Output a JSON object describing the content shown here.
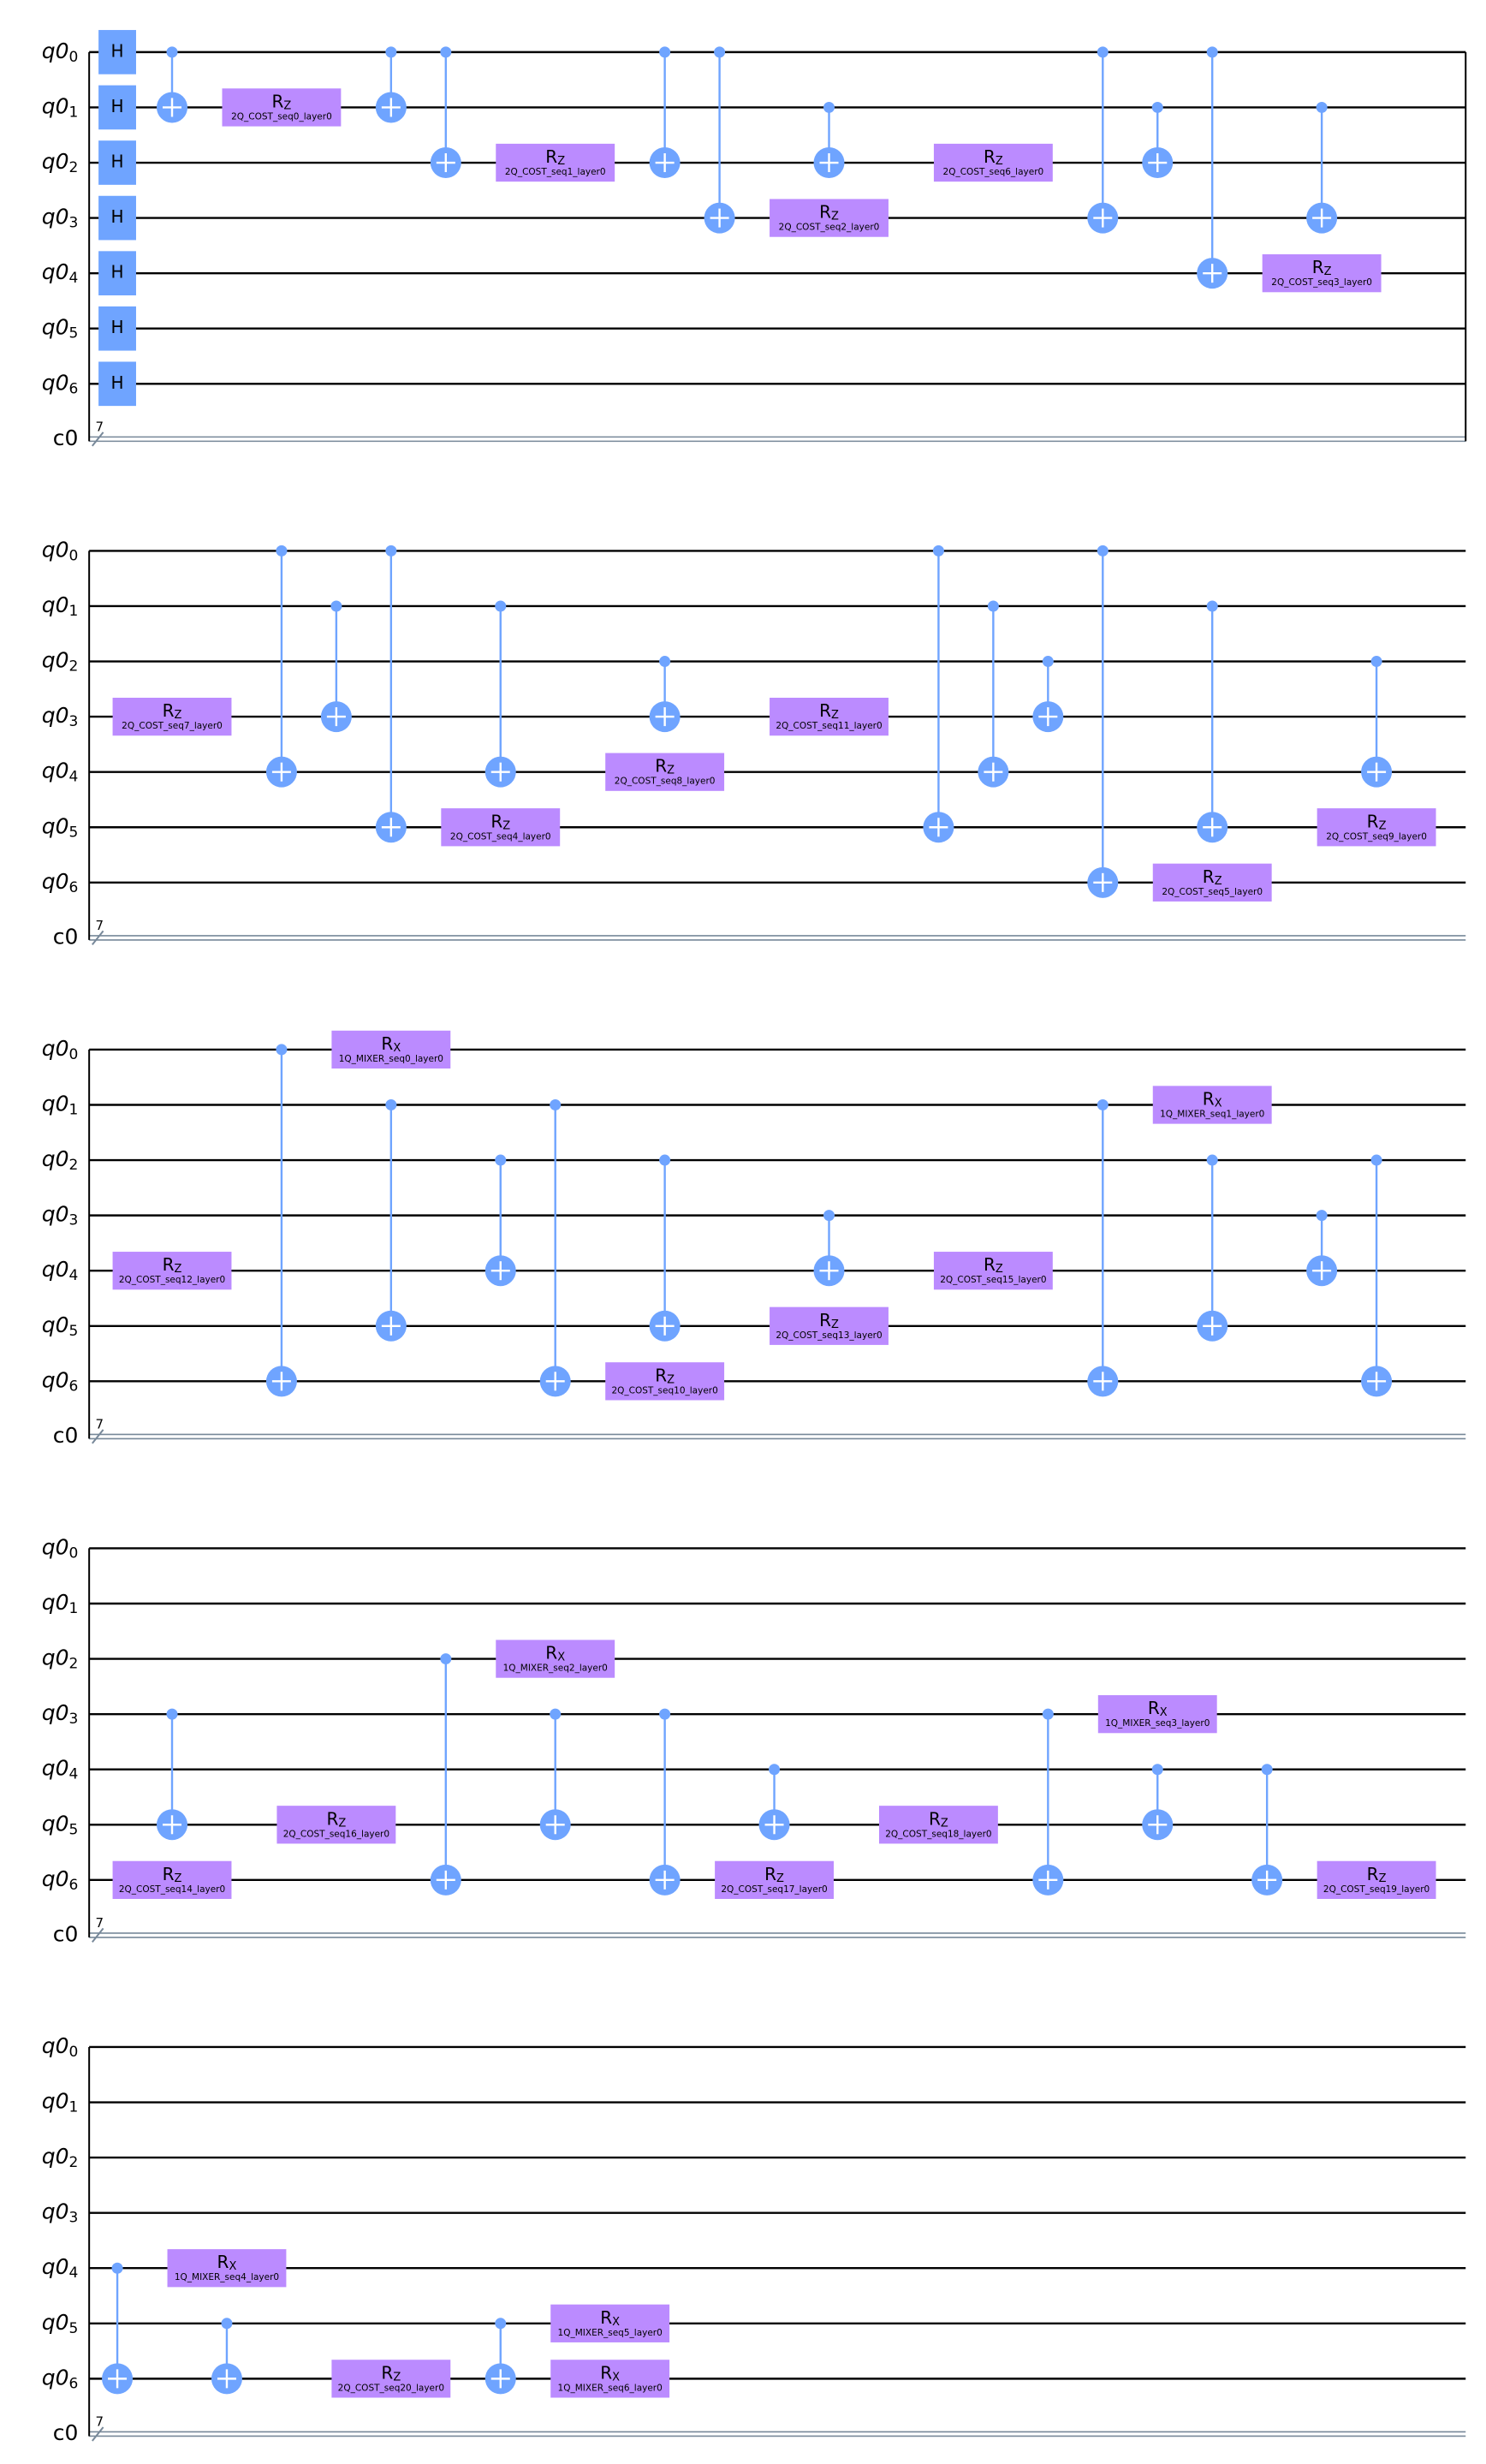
{
  "register": "q0",
  "qubit_indices": [
    "0",
    "1",
    "2",
    "3",
    "4",
    "5",
    "6"
  ],
  "classical": {
    "name": "c0",
    "size": "7"
  },
  "sections": [
    {
      "columns": [
        [
          {
            "gate": "h",
            "qubit": 0,
            "label": "H"
          },
          {
            "gate": "h",
            "qubit": 1,
            "label": "H"
          },
          {
            "gate": "h",
            "qubit": 2,
            "label": "H"
          },
          {
            "gate": "h",
            "qubit": 3,
            "label": "H"
          },
          {
            "gate": "h",
            "qubit": 4,
            "label": "H"
          },
          {
            "gate": "h",
            "qubit": 5,
            "label": "H"
          },
          {
            "gate": "h",
            "qubit": 6,
            "label": "H"
          }
        ],
        [
          {
            "gate": "cx",
            "control": 0,
            "target": 1
          }
        ],
        [
          {
            "gate": "rz",
            "qubit": 1,
            "label": "R",
            "sub": "Z",
            "param": "2Q_COST_seq0_layer0"
          }
        ],
        [
          {
            "gate": "cx",
            "control": 0,
            "target": 1
          }
        ],
        [
          {
            "gate": "cx",
            "control": 0,
            "target": 2
          }
        ],
        [
          {
            "gate": "rz",
            "qubit": 2,
            "label": "R",
            "sub": "Z",
            "param": "2Q_COST_seq1_layer0"
          }
        ],
        [
          {
            "gate": "cx",
            "control": 0,
            "target": 2
          }
        ],
        [
          {
            "gate": "cx",
            "control": 0,
            "target": 3
          }
        ],
        [
          {
            "gate": "rz",
            "qubit": 3,
            "label": "R",
            "sub": "Z",
            "param": "2Q_COST_seq2_layer0"
          },
          {
            "gate": "cx",
            "control": 1,
            "target": 2
          }
        ],
        [
          {
            "gate": "rz",
            "qubit": 2,
            "label": "R",
            "sub": "Z",
            "param": "2Q_COST_seq6_layer0"
          }
        ],
        [
          {
            "gate": "cx",
            "control": 0,
            "target": 3
          }
        ],
        [
          {
            "gate": "cx",
            "control": 1,
            "target": 2
          }
        ],
        [
          {
            "gate": "cx",
            "control": 0,
            "target": 4
          }
        ],
        [
          {
            "gate": "cx",
            "control": 1,
            "target": 3
          },
          {
            "gate": "rz",
            "qubit": 4,
            "label": "R",
            "sub": "Z",
            "param": "2Q_COST_seq3_layer0"
          }
        ]
      ]
    },
    {
      "columns": [
        [
          {
            "gate": "rz",
            "qubit": 3,
            "label": "R",
            "sub": "Z",
            "param": "2Q_COST_seq7_layer0"
          }
        ],
        [
          {
            "gate": "cx",
            "control": 0,
            "target": 4
          }
        ],
        [
          {
            "gate": "cx",
            "control": 1,
            "target": 3
          }
        ],
        [
          {
            "gate": "cx",
            "control": 0,
            "target": 5
          }
        ],
        [
          {
            "gate": "cx",
            "control": 1,
            "target": 4
          },
          {
            "gate": "rz",
            "qubit": 5,
            "label": "R",
            "sub": "Z",
            "param": "2Q_COST_seq4_layer0"
          }
        ],
        [
          {
            "gate": "cx",
            "control": 2,
            "target": 3
          },
          {
            "gate": "rz",
            "qubit": 4,
            "label": "R",
            "sub": "Z",
            "param": "2Q_COST_seq8_layer0"
          }
        ],
        [
          {
            "gate": "rz",
            "qubit": 3,
            "label": "R",
            "sub": "Z",
            "param": "2Q_COST_seq11_layer0"
          }
        ],
        [
          {
            "gate": "cx",
            "control": 0,
            "target": 5
          }
        ],
        [
          {
            "gate": "cx",
            "control": 1,
            "target": 4
          }
        ],
        [
          {
            "gate": "cx",
            "control": 2,
            "target": 3
          }
        ],
        [
          {
            "gate": "cx",
            "control": 0,
            "target": 6
          }
        ],
        [
          {
            "gate": "cx",
            "control": 1,
            "target": 5
          },
          {
            "gate": "rz",
            "qubit": 6,
            "label": "R",
            "sub": "Z",
            "param": "2Q_COST_seq5_layer0"
          }
        ],
        [
          {
            "gate": "cx",
            "control": 2,
            "target": 4
          },
          {
            "gate": "rz",
            "qubit": 5,
            "label": "R",
            "sub": "Z",
            "param": "2Q_COST_seq9_layer0"
          }
        ]
      ]
    },
    {
      "columns": [
        [
          {
            "gate": "rz",
            "qubit": 4,
            "label": "R",
            "sub": "Z",
            "param": "2Q_COST_seq12_layer0"
          }
        ],
        [
          {
            "gate": "cx",
            "control": 0,
            "target": 6
          }
        ],
        [
          {
            "gate": "cx",
            "control": 1,
            "target": 5
          },
          {
            "gate": "rx",
            "qubit": 0,
            "label": "R",
            "sub": "X",
            "param": "1Q_MIXER_seq0_layer0"
          }
        ],
        [
          {
            "gate": "cx",
            "control": 2,
            "target": 4
          }
        ],
        [
          {
            "gate": "cx",
            "control": 1,
            "target": 6
          }
        ],
        [
          {
            "gate": "cx",
            "control": 2,
            "target": 5
          },
          {
            "gate": "rz",
            "qubit": 6,
            "label": "R",
            "sub": "Z",
            "param": "2Q_COST_seq10_layer0"
          }
        ],
        [
          {
            "gate": "cx",
            "control": 3,
            "target": 4
          },
          {
            "gate": "rz",
            "qubit": 5,
            "label": "R",
            "sub": "Z",
            "param": "2Q_COST_seq13_layer0"
          }
        ],
        [
          {
            "gate": "rz",
            "qubit": 4,
            "label": "R",
            "sub": "Z",
            "param": "2Q_COST_seq15_layer0"
          }
        ],
        [
          {
            "gate": "cx",
            "control": 1,
            "target": 6
          }
        ],
        [
          {
            "gate": "cx",
            "control": 2,
            "target": 5
          },
          {
            "gate": "rx",
            "qubit": 1,
            "label": "R",
            "sub": "X",
            "param": "1Q_MIXER_seq1_layer0"
          }
        ],
        [
          {
            "gate": "cx",
            "control": 3,
            "target": 4
          }
        ],
        [
          {
            "gate": "cx",
            "control": 2,
            "target": 6
          }
        ]
      ]
    },
    {
      "columns": [
        [
          {
            "gate": "cx",
            "control": 3,
            "target": 5
          },
          {
            "gate": "rz",
            "qubit": 6,
            "label": "R",
            "sub": "Z",
            "param": "2Q_COST_seq14_layer0"
          }
        ],
        [
          {
            "gate": "rz",
            "qubit": 5,
            "label": "R",
            "sub": "Z",
            "param": "2Q_COST_seq16_layer0"
          }
        ],
        [
          {
            "gate": "cx",
            "control": 2,
            "target": 6
          }
        ],
        [
          {
            "gate": "cx",
            "control": 3,
            "target": 5
          },
          {
            "gate": "rx",
            "qubit": 2,
            "label": "R",
            "sub": "X",
            "param": "1Q_MIXER_seq2_layer0"
          }
        ],
        [
          {
            "gate": "cx",
            "control": 3,
            "target": 6
          }
        ],
        [
          {
            "gate": "cx",
            "control": 4,
            "target": 5
          },
          {
            "gate": "rz",
            "qubit": 6,
            "label": "R",
            "sub": "Z",
            "param": "2Q_COST_seq17_layer0"
          }
        ],
        [
          {
            "gate": "rz",
            "qubit": 5,
            "label": "R",
            "sub": "Z",
            "param": "2Q_COST_seq18_layer0"
          }
        ],
        [
          {
            "gate": "cx",
            "control": 3,
            "target": 6
          }
        ],
        [
          {
            "gate": "cx",
            "control": 4,
            "target": 5
          },
          {
            "gate": "rx",
            "qubit": 3,
            "label": "R",
            "sub": "X",
            "param": "1Q_MIXER_seq3_layer0"
          }
        ],
        [
          {
            "gate": "cx",
            "control": 4,
            "target": 6
          }
        ],
        [
          {
            "gate": "rz",
            "qubit": 6,
            "label": "R",
            "sub": "Z",
            "param": "2Q_COST_seq19_layer0"
          }
        ]
      ]
    },
    {
      "columns": [
        [
          {
            "gate": "cx",
            "control": 4,
            "target": 6
          }
        ],
        [
          {
            "gate": "cx",
            "control": 5,
            "target": 6
          },
          {
            "gate": "rx",
            "qubit": 4,
            "label": "R",
            "sub": "X",
            "param": "1Q_MIXER_seq4_layer0"
          }
        ],
        [
          {
            "gate": "rz",
            "qubit": 6,
            "label": "R",
            "sub": "Z",
            "param": "2Q_COST_seq20_layer0"
          }
        ],
        [
          {
            "gate": "cx",
            "control": 5,
            "target": 6
          }
        ],
        [
          {
            "gate": "rx",
            "qubit": 5,
            "label": "R",
            "sub": "X",
            "param": "1Q_MIXER_seq5_layer0"
          },
          {
            "gate": "rx",
            "qubit": 6,
            "label": "R",
            "sub": "X",
            "param": "1Q_MIXER_seq6_layer0"
          }
        ]
      ]
    }
  ]
}
